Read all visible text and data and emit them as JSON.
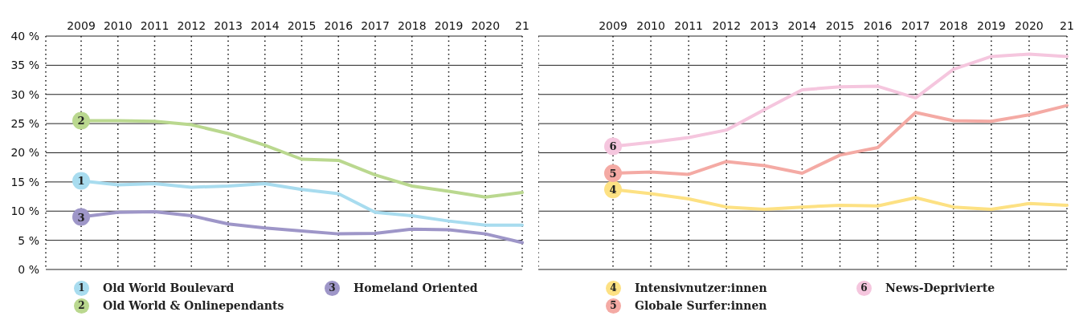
{
  "chart_data": [
    {
      "type": "line",
      "categories": [
        "2009",
        "2010",
        "2011",
        "2012",
        "2013",
        "2014",
        "2015",
        "2016",
        "2017",
        "2018",
        "2019",
        "2020",
        "21"
      ],
      "ylim": [
        0,
        40
      ],
      "yticks": [
        {
          "value": 0,
          "label": "0 %"
        },
        {
          "value": 5,
          "label": "5 %"
        },
        {
          "value": 10,
          "label": "10 %"
        },
        {
          "value": 15,
          "label": "15 %"
        },
        {
          "value": 20,
          "label": "20 %"
        },
        {
          "value": 25,
          "label": "25 %"
        },
        {
          "value": 30,
          "label": "30 %"
        },
        {
          "value": 35,
          "label": "35 %"
        },
        {
          "value": 40,
          "label": "40 %"
        }
      ],
      "grid": true,
      "legend": "bottom",
      "series": [
        {
          "name": "Old World Boulevard",
          "color": "#a8dcef",
          "values": [
            15.2,
            14.5,
            14.7,
            14.1,
            14.3,
            14.7,
            13.7,
            13.0,
            9.8,
            9.2,
            8.3,
            7.6,
            7.6
          ]
        },
        {
          "name": "Old World & Onlinependants",
          "color": "#bad88f",
          "values": [
            25.5,
            25.5,
            25.4,
            24.8,
            23.3,
            21.3,
            18.9,
            18.7,
            16.2,
            14.3,
            13.4,
            12.4,
            13.2
          ]
        },
        {
          "name": "Homeland Oriented",
          "color": "#9e96c8",
          "values": [
            9.0,
            9.8,
            9.9,
            9.2,
            7.8,
            7.1,
            6.6,
            6.1,
            6.2,
            6.9,
            6.8,
            6.1,
            4.6
          ]
        }
      ],
      "annotations": [
        {
          "text": "1",
          "x": "2009",
          "y": 15.2
        },
        {
          "text": "2",
          "x": "2009",
          "y": 25.5
        },
        {
          "text": "3",
          "x": "2009",
          "y": 9.0
        }
      ]
    },
    {
      "type": "line",
      "categories": [
        "2009",
        "2010",
        "2011",
        "2012",
        "2013",
        "2014",
        "2015",
        "2016",
        "2017",
        "2018",
        "2019",
        "2020",
        "21"
      ],
      "ylim": [
        0,
        40
      ],
      "yticks": [
        0,
        5,
        10,
        15,
        20,
        25,
        30,
        35,
        40
      ],
      "grid": true,
      "legend": "bottom",
      "tick_labels": "x",
      "series": [
        {
          "name": "Intensivnutzer:innen",
          "color": "#fde183",
          "values": [
            13.7,
            13.0,
            12.1,
            10.7,
            10.3,
            10.7,
            11.0,
            10.9,
            12.3,
            10.7,
            10.3,
            11.3,
            11.0
          ]
        },
        {
          "name": "Globale Surfer:innen",
          "color": "#f4aaa4",
          "values": [
            16.5,
            16.7,
            16.3,
            18.5,
            17.8,
            16.5,
            19.6,
            20.9,
            26.9,
            25.5,
            25.4,
            26.5,
            28.1
          ]
        },
        {
          "name": "News-Deprivierte",
          "color": "#f5c6de",
          "values": [
            21.1,
            21.8,
            22.6,
            23.9,
            27.4,
            30.8,
            31.3,
            31.4,
            29.4,
            34.3,
            36.5,
            36.9,
            36.5
          ]
        }
      ],
      "annotations": [
        {
          "text": "4",
          "x": "2009",
          "y": 13.7
        },
        {
          "text": "5",
          "x": "2009",
          "y": 16.5
        },
        {
          "text": "6",
          "x": "2009",
          "y": 21.1
        }
      ]
    }
  ]
}
